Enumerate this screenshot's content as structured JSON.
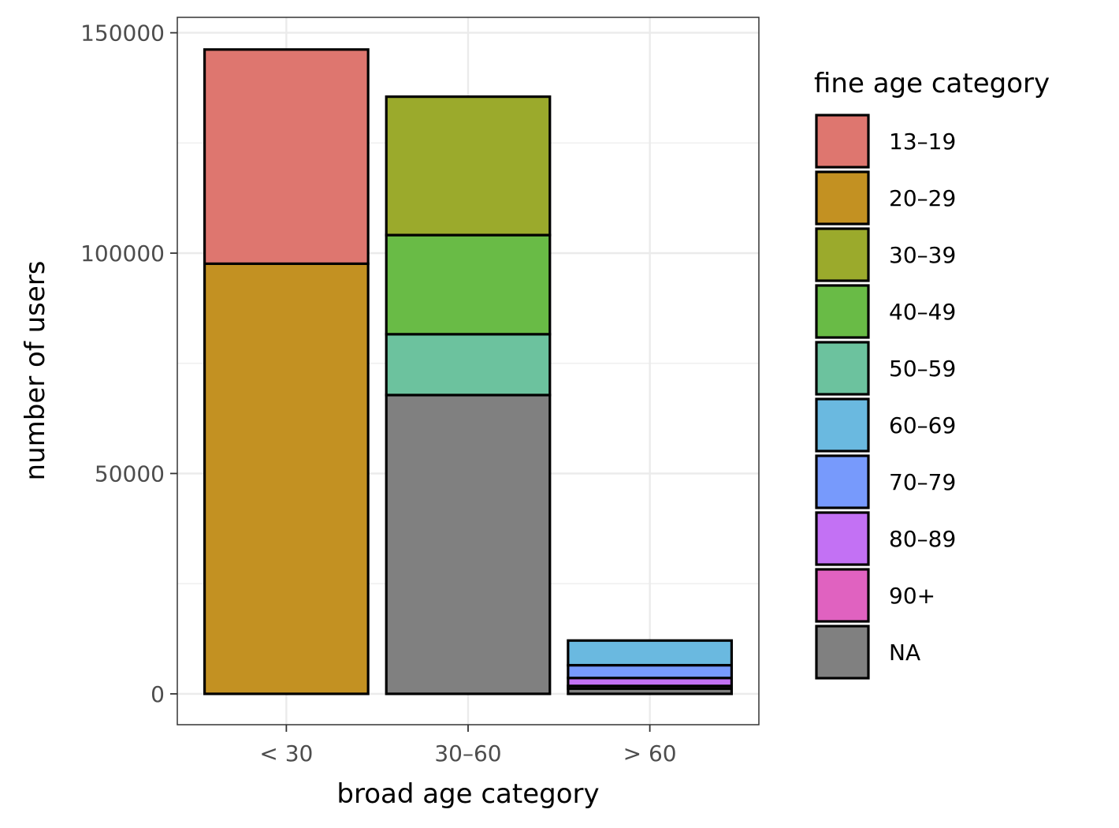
{
  "chart_data": {
    "type": "bar",
    "stacked": true,
    "title": "",
    "xlabel": "broad age category",
    "ylabel": "number of users",
    "categories": [
      "< 30",
      "30–60",
      "> 60"
    ],
    "ylim": [
      -7000,
      153500
    ],
    "yticks": [
      0,
      50000,
      100000,
      150000
    ],
    "yticks_labels": [
      "0",
      "50000",
      "100000",
      "150000"
    ],
    "y_minor_gridlines": [
      25000,
      75000,
      125000
    ],
    "grid": true,
    "legend_title": "fine age category",
    "legend_position": "right",
    "series": [
      {
        "name": "13–19",
        "color": "#DE766F",
        "values": [
          48600,
          0,
          0
        ]
      },
      {
        "name": "20–29",
        "color": "#C39122",
        "values": [
          97600,
          0,
          0
        ]
      },
      {
        "name": "30–39",
        "color": "#9BAA2C",
        "values": [
          0,
          31400,
          0
        ]
      },
      {
        "name": "40–49",
        "color": "#69BB46",
        "values": [
          0,
          22500,
          0
        ]
      },
      {
        "name": "50–59",
        "color": "#6CC29E",
        "values": [
          0,
          13800,
          0
        ]
      },
      {
        "name": "60–69",
        "color": "#6AB9E0",
        "values": [
          0,
          0,
          5600
        ]
      },
      {
        "name": "70–79",
        "color": "#779AFC",
        "values": [
          0,
          0,
          2900
        ]
      },
      {
        "name": "80–89",
        "color": "#C371F4",
        "values": [
          0,
          0,
          1800
        ]
      },
      {
        "name": "90+",
        "color": "#E062C0",
        "values": [
          0,
          0,
          600
        ]
      },
      {
        "name": "NA",
        "color": "#808080",
        "values": [
          0,
          67800,
          1200
        ]
      }
    ],
    "stack_order_bottom_to_top": [
      "NA",
      "90+",
      "80–89",
      "70–79",
      "60–69",
      "50–59",
      "40–49",
      "30–39",
      "20–29",
      "13–19"
    ]
  }
}
